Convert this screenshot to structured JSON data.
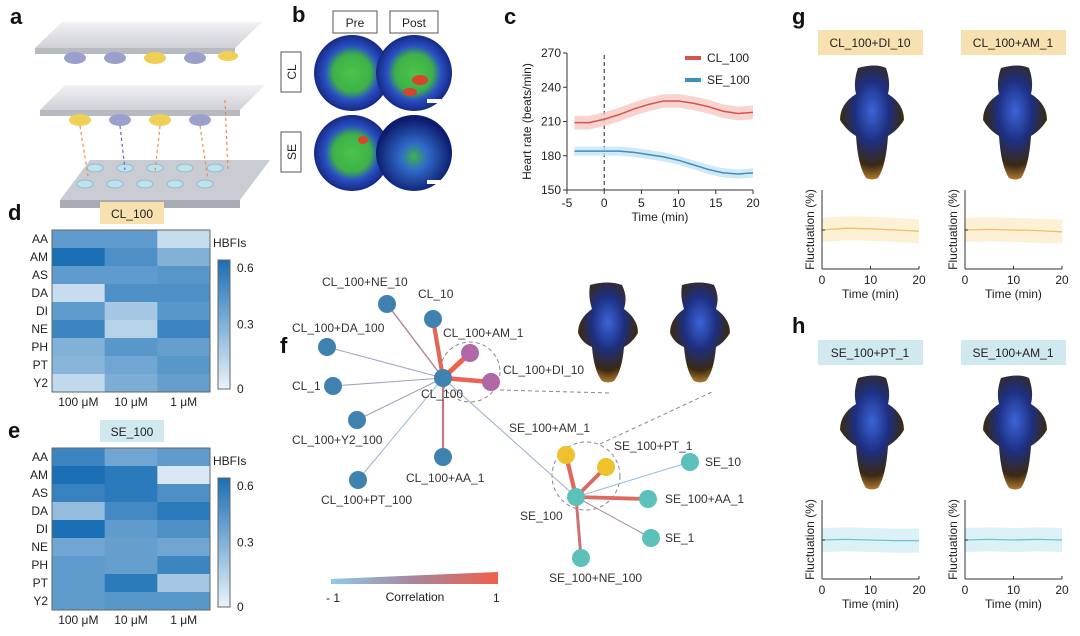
{
  "panels": {
    "a": {
      "letter": "a"
    },
    "b": {
      "letter": "b",
      "columns": [
        "Pre",
        "Post"
      ],
      "rows": [
        "CL",
        "SE"
      ]
    },
    "c": {
      "letter": "c"
    },
    "d": {
      "letter": "d"
    },
    "e": {
      "letter": "e"
    },
    "f": {
      "letter": "f"
    },
    "g": {
      "letter": "g"
    },
    "h": {
      "letter": "h"
    }
  },
  "chart_data": [
    {
      "id": "c",
      "type": "line",
      "xlabel": "Time (min)",
      "ylabel": "Heart rate (beats/min)",
      "xlim": [
        -5,
        20
      ],
      "ylim": [
        150,
        270
      ],
      "xticks": [
        "-5",
        "0",
        "5",
        "10",
        "15",
        "20"
      ],
      "yticks": [
        "150",
        "180",
        "210",
        "240",
        "270"
      ],
      "vline_at": 0,
      "legend": "top-right",
      "series": [
        {
          "name": "CL_100",
          "color": "#d9534a",
          "band": "#f6c9c4",
          "x": [
            -4,
            -2,
            0,
            2,
            4,
            6,
            8,
            10,
            12,
            14,
            16,
            18,
            20
          ],
          "y": [
            209,
            209,
            212,
            216,
            221,
            225,
            228,
            228,
            226,
            223,
            219,
            217,
            218
          ],
          "err": 6
        },
        {
          "name": "SE_100",
          "color": "#3a8fbf",
          "band": "#c4e3f1",
          "x": [
            -4,
            -2,
            0,
            2,
            4,
            6,
            8,
            10,
            12,
            14,
            16,
            18,
            20
          ],
          "y": [
            184,
            184,
            184,
            184,
            183,
            181,
            179,
            176,
            172,
            168,
            165,
            164,
            165
          ],
          "err": 4
        }
      ]
    },
    {
      "id": "d",
      "type": "heatmap",
      "title": "CL_100",
      "rows": [
        "AA",
        "AM",
        "AS",
        "DA",
        "DI",
        "NE",
        "PH",
        "PT",
        "Y2"
      ],
      "columns": [
        "100 μM",
        "10 μM",
        "1 μM"
      ],
      "values": [
        [
          0.4,
          0.4,
          0.1
        ],
        [
          0.6,
          0.45,
          0.3
        ],
        [
          0.4,
          0.4,
          0.42
        ],
        [
          0.1,
          0.45,
          0.45
        ],
        [
          0.4,
          0.2,
          0.42
        ],
        [
          0.5,
          0.15,
          0.5
        ],
        [
          0.3,
          0.42,
          0.38
        ],
        [
          0.28,
          0.35,
          0.42
        ],
        [
          0.12,
          0.32,
          0.38
        ]
      ],
      "colorbar_label": "HBFIs",
      "colorbar_ticks": [
        "0",
        "0.3",
        "0.6"
      ],
      "clim": [
        0,
        0.6
      ]
    },
    {
      "id": "e",
      "type": "heatmap",
      "title": "SE_100",
      "rows": [
        "AA",
        "AM",
        "AS",
        "DA",
        "DI",
        "NE",
        "PH",
        "PT",
        "Y2"
      ],
      "columns": [
        "100 μM",
        "10 μM",
        "1 μM"
      ],
      "values": [
        [
          0.5,
          0.35,
          0.4
        ],
        [
          0.6,
          0.55,
          0.05
        ],
        [
          0.52,
          0.55,
          0.45
        ],
        [
          0.25,
          0.48,
          0.55
        ],
        [
          0.62,
          0.4,
          0.45
        ],
        [
          0.35,
          0.38,
          0.35
        ],
        [
          0.4,
          0.38,
          0.5
        ],
        [
          0.4,
          0.55,
          0.2
        ],
        [
          0.4,
          0.42,
          0.42
        ]
      ],
      "colorbar_label": "HBFIs",
      "colorbar_ticks": [
        "0",
        "0.3",
        "0.6"
      ],
      "clim": [
        0,
        0.6
      ]
    },
    {
      "id": "f",
      "type": "network",
      "colorbar_label": "Correlation",
      "colorbar_ticks": [
        "- 1",
        "1"
      ],
      "clim": [
        -1,
        1
      ],
      "nodes": [
        {
          "id": "CL_100",
          "group": "CL",
          "color": "#3f82b0"
        },
        {
          "id": "CL_100+NE_10",
          "group": "CL",
          "color": "#3f82b0"
        },
        {
          "id": "CL_10",
          "group": "CL",
          "color": "#3f82b0"
        },
        {
          "id": "CL_100+DA_100",
          "group": "CL",
          "color": "#3f82b0"
        },
        {
          "id": "CL_1",
          "group": "CL",
          "color": "#3f82b0"
        },
        {
          "id": "CL_100+Y2_100",
          "group": "CL",
          "color": "#3f82b0"
        },
        {
          "id": "CL_100+PT_100",
          "group": "CL",
          "color": "#3f82b0"
        },
        {
          "id": "CL_100+AA_1",
          "group": "CL",
          "color": "#3f82b0"
        },
        {
          "id": "CL_100+AM_1",
          "group": "CL-highlight",
          "color": "#b067a8"
        },
        {
          "id": "CL_100+DI_10",
          "group": "CL-highlight",
          "color": "#b067a8"
        },
        {
          "id": "SE_100",
          "group": "SE",
          "color": "#5cc1bb"
        },
        {
          "id": "SE_100+AM_1",
          "group": "SE-highlight",
          "color": "#efc12c"
        },
        {
          "id": "SE_100+PT_1",
          "group": "SE-highlight",
          "color": "#efc12c"
        },
        {
          "id": "SE_10",
          "group": "SE",
          "color": "#5cc1bb"
        },
        {
          "id": "SE_100+AA_1",
          "group": "SE",
          "color": "#5cc1bb"
        },
        {
          "id": "SE_1",
          "group": "SE",
          "color": "#5cc1bb"
        },
        {
          "id": "SE_100+NE_100",
          "group": "SE",
          "color": "#5cc1bb"
        }
      ],
      "edges": [
        {
          "source": "CL_100",
          "target": "CL_100+NE_10",
          "correlation": 0.1
        },
        {
          "source": "CL_100",
          "target": "CL_10",
          "correlation": 0.8
        },
        {
          "source": "CL_100",
          "target": "CL_100+DA_100",
          "correlation": -0.5
        },
        {
          "source": "CL_100",
          "target": "CL_1",
          "correlation": -0.4
        },
        {
          "source": "CL_100",
          "target": "CL_100+Y2_100",
          "correlation": -0.3
        },
        {
          "source": "CL_100",
          "target": "CL_100+PT_100",
          "correlation": -0.7
        },
        {
          "source": "CL_100",
          "target": "CL_100+AA_1",
          "correlation": 0.3
        },
        {
          "source": "CL_100",
          "target": "CL_100+AM_1",
          "correlation": 1.0
        },
        {
          "source": "CL_100",
          "target": "CL_100+DI_10",
          "correlation": 0.9
        },
        {
          "source": "CL_100",
          "target": "SE_100",
          "correlation": -0.6
        },
        {
          "source": "SE_100",
          "target": "SE_100+AM_1",
          "correlation": 0.8
        },
        {
          "source": "SE_100",
          "target": "SE_100+PT_1",
          "correlation": 0.7
        },
        {
          "source": "SE_100",
          "target": "SE_10",
          "correlation": -0.8
        },
        {
          "source": "SE_100",
          "target": "SE_100+AA_1",
          "correlation": 0.7
        },
        {
          "source": "SE_100",
          "target": "SE_1",
          "correlation": -0.1
        },
        {
          "source": "SE_100",
          "target": "SE_100+NE_100",
          "correlation": 0.5
        }
      ]
    },
    {
      "id": "g",
      "type": "line",
      "panels": [
        {
          "title": "CL_100+DI_10",
          "title_bg": "#f7e1b0",
          "color": "#e9c46a",
          "band": "#fbeccb",
          "x": [
            0,
            5,
            10,
            15,
            20
          ],
          "y": [
            0,
            0.3,
            0.2,
            0,
            -0.2
          ]
        },
        {
          "title": "CL_100+AM_1",
          "title_bg": "#f7e1b0",
          "color": "#e9c46a",
          "band": "#fbeccb",
          "x": [
            0,
            5,
            10,
            15,
            20
          ],
          "y": [
            0,
            0.1,
            0,
            -0.1,
            -0.3
          ]
        }
      ],
      "xlabel": "Time (min)",
      "ylabel": "Fluctuation (%)",
      "xticks": [
        "0",
        "10",
        "20"
      ],
      "xlim": [
        0,
        20
      ]
    },
    {
      "id": "h",
      "type": "line",
      "panels": [
        {
          "title": "SE_100+PT_1",
          "title_bg": "#cfe9ee",
          "color": "#6cc3d3",
          "band": "#d2edf2",
          "x": [
            0,
            5,
            10,
            15,
            20
          ],
          "y": [
            0,
            0.1,
            0,
            -0.1,
            -0.1
          ]
        },
        {
          "title": "SE_100+AM_1",
          "title_bg": "#cfe9ee",
          "color": "#6cc3d3",
          "band": "#d2edf2",
          "x": [
            0,
            5,
            10,
            15,
            20
          ],
          "y": [
            0,
            0.1,
            0,
            0.1,
            0
          ]
        }
      ],
      "xlabel": "Time (min)",
      "ylabel": "Fluctuation (%)",
      "xticks": [
        "0",
        "10",
        "20"
      ],
      "xlim": [
        0,
        20
      ]
    }
  ]
}
